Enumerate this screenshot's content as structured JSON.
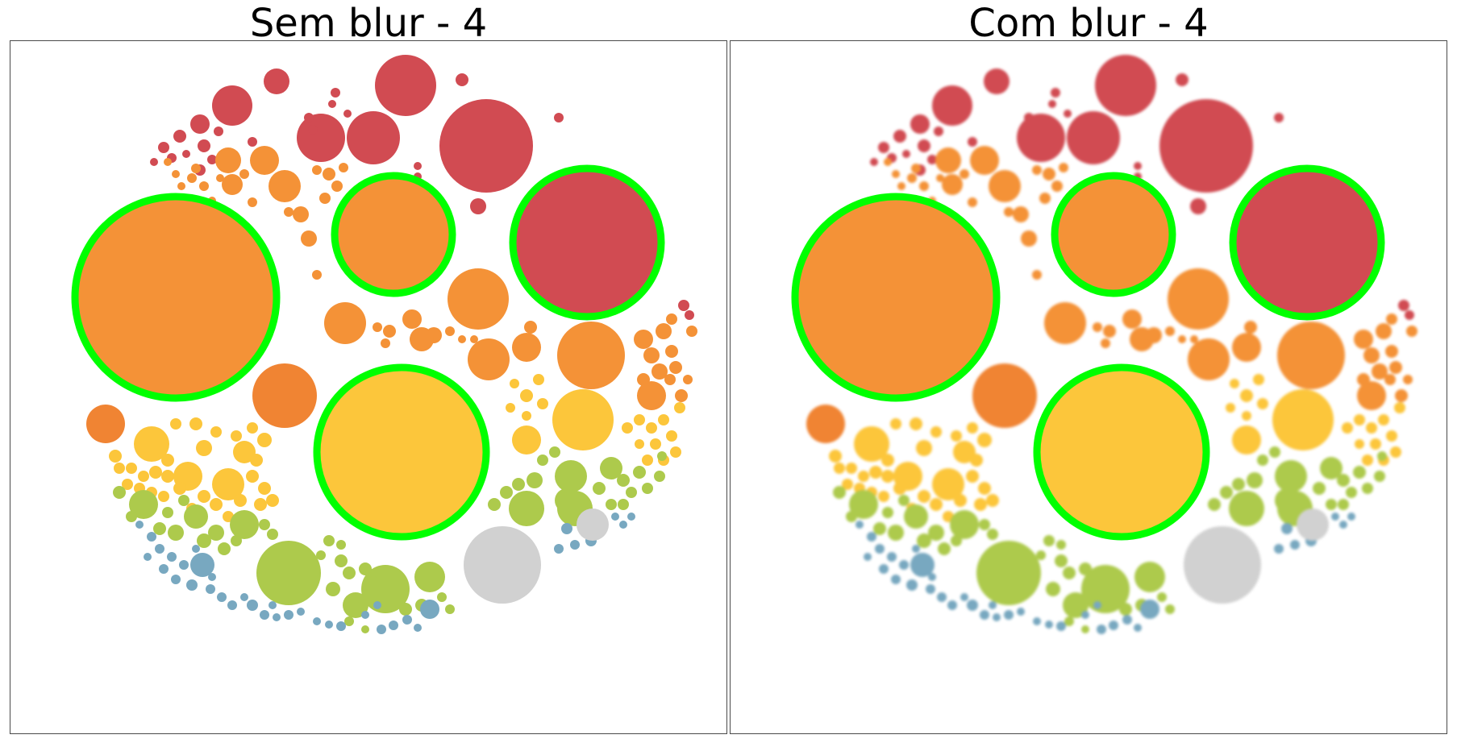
{
  "panels": [
    {
      "title": "Sem blur - 4",
      "blurred": false,
      "highlight_color": "#00ff00"
    },
    {
      "title": "Com blur - 4",
      "blurred": true,
      "highlight_color": "#00ff00"
    }
  ],
  "colors": {
    "red": "#d14b52",
    "orange": "#f49237",
    "orange2": "#f08433",
    "yellow": "#fcc63b",
    "green": "#adca4c",
    "blue": "#78a8c0",
    "gray": "#d1d1d1",
    "highlight": "#00ff00"
  }
}
